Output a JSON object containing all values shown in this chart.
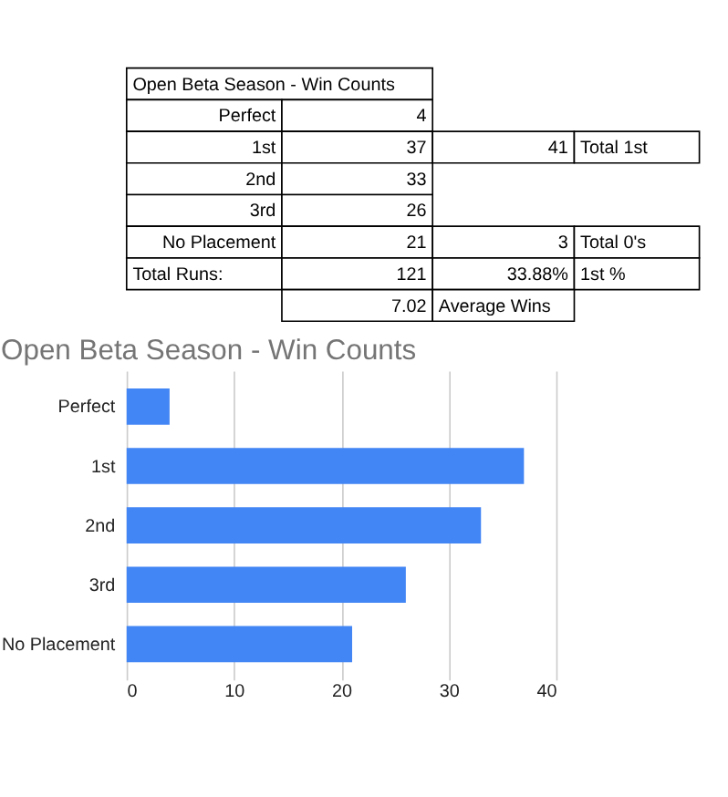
{
  "chart_data": {
    "type": "bar",
    "orientation": "horizontal",
    "title": "Open Beta Season - Win Counts",
    "categories": [
      "Perfect",
      "1st",
      "2nd",
      "3rd",
      "No Placement"
    ],
    "values": [
      4,
      37,
      33,
      26,
      21
    ],
    "color": "#4285f4",
    "xlim": [
      0,
      40
    ],
    "xticks": [
      0,
      10,
      20,
      30,
      40
    ],
    "grid": "x",
    "annotations": [
      "4",
      "37",
      "33",
      "26",
      "21",
      "Total Runs:",
      "121",
      "41",
      "Total 1st",
      "3",
      "Total 0's",
      "33.88%",
      "1st %",
      "7.02",
      "Average Wins"
    ]
  }
}
